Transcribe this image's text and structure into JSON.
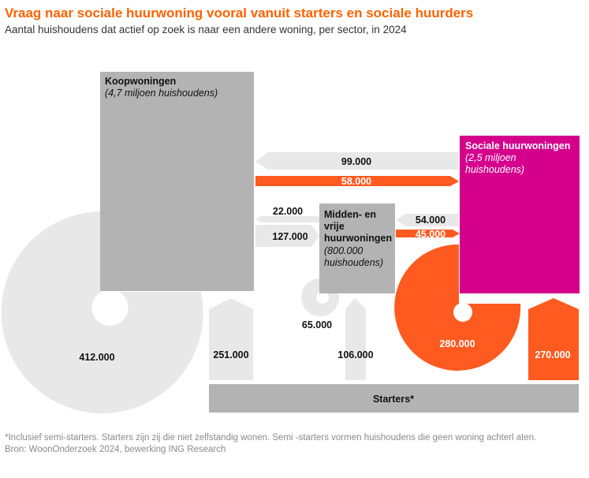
{
  "title": "Vraag naar sociale huurwoning vooral vanuit starters en sociale huurders",
  "subtitle": "Aantal huishoudens dat actief op zoek is naar een andere woning, per sector, in 2024",
  "colors": {
    "grey_box": "#b3b3b3",
    "light_grey": "#e8e8e8",
    "orange": "#ff5a1f",
    "magenta": "#d4008c",
    "title_orange": "#ff6200"
  },
  "sectors": {
    "koop": {
      "name": "Koopwoningen",
      "size": "(4,7 miljoen huishoudens)"
    },
    "midden": {
      "name_lines": [
        "Midden- en",
        "vrije",
        "huurwoningen"
      ],
      "size_lines": [
        "(800.000",
        "huishoudens)"
      ]
    },
    "sociaal": {
      "name": "Sociale huurwoningen",
      "size_lines": [
        "(2,5 miljoen",
        "huishoudens)"
      ]
    },
    "starters": {
      "name": "Starters*"
    }
  },
  "flows": {
    "sociaal_to_koop": "99.000",
    "koop_to_sociaal": "58.000",
    "midden_to_koop": "22.000",
    "koop_to_midden": "127.000",
    "sociaal_to_midden": "54.000",
    "midden_to_sociaal": "45.000",
    "koop_within": "412.000",
    "midden_within": "65.000",
    "sociaal_within": "280.000",
    "starters_to_koop": "251.000",
    "starters_to_midden": "106.000",
    "starters_to_sociaal": "270.000"
  },
  "footnote": {
    "line1": "*Inclusief semi-starters. Starters zijn zij die niet zelfstandig wonen. Semi -starters vormen huishoudens die geen woning achterl  aten.",
    "line2": "Bron: WoonOnderzoek 2024, bewerking ING Research"
  }
}
